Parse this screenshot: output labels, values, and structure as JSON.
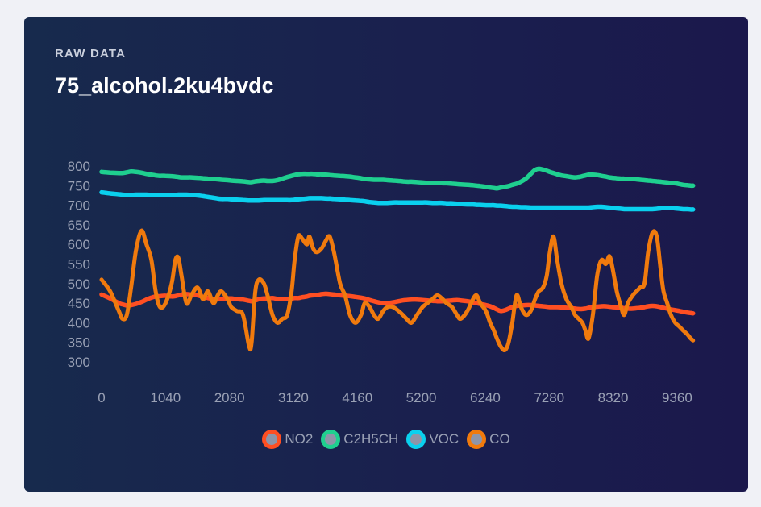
{
  "card": {
    "eyebrow": "RAW DATA",
    "title": "75_alcohol.2ku4bvdc"
  },
  "chart_data": {
    "type": "line",
    "title": "75_alcohol.2ku4bvdc",
    "xlabel": "",
    "ylabel": "",
    "xlim": [
      0,
      9650
    ],
    "ylim": [
      280,
      820
    ],
    "x_ticks": [
      0,
      1040,
      2080,
      3120,
      4160,
      5200,
      6240,
      7280,
      8320,
      9360
    ],
    "y_ticks": [
      300,
      350,
      400,
      450,
      500,
      550,
      600,
      650,
      700,
      750,
      800
    ],
    "grid": false,
    "legend_position": "bottom",
    "x": [
      0,
      140,
      280,
      340,
      410,
      480,
      560,
      650,
      730,
      810,
      880,
      950,
      1040,
      1140,
      1200,
      1250,
      1300,
      1380,
      1460,
      1560,
      1650,
      1730,
      1820,
      1890,
      1950,
      2050,
      2110,
      2200,
      2300,
      2400,
      2440,
      2500,
      2560,
      2640,
      2700,
      2780,
      2860,
      2940,
      3020,
      3090,
      3140,
      3200,
      3260,
      3340,
      3380,
      3440,
      3500,
      3580,
      3650,
      3710,
      3780,
      3880,
      3960,
      4040,
      4130,
      4220,
      4280,
      4360,
      4430,
      4500,
      4580,
      4650,
      4740,
      4830,
      4900,
      4960,
      5040,
      5130,
      5220,
      5300,
      5380,
      5460,
      5550,
      5610,
      5700,
      5780,
      5840,
      5950,
      6040,
      6100,
      6160,
      6250,
      6320,
      6380,
      6430,
      6490,
      6560,
      6620,
      6680,
      6750,
      6820,
      6900,
      6980,
      7050,
      7110,
      7180,
      7240,
      7290,
      7350,
      7410,
      7480,
      7560,
      7640,
      7700,
      7760,
      7820,
      7870,
      7920,
      7990,
      8060,
      8130,
      8200,
      8260,
      8310,
      8380,
      8450,
      8500,
      8560,
      8640,
      8700,
      8760,
      8830,
      8890,
      8960,
      9030,
      9090,
      9140,
      9200,
      9260,
      9330,
      9400,
      9460,
      9530,
      9580,
      9620
    ],
    "series": [
      {
        "name": "NO2",
        "color": "#ff4f22",
        "values": [
          472,
          462,
          450,
          447,
          444,
          445,
          448,
          453,
          459,
          464,
          467,
          468,
          469,
          467,
          468,
          470,
          472,
          473,
          472,
          470,
          466,
          463,
          460,
          460,
          461,
          462,
          462,
          460,
          459,
          456,
          455,
          457,
          460,
          462,
          462,
          463,
          461,
          460,
          461,
          462,
          463,
          463,
          465,
          467,
          469,
          470,
          471,
          473,
          474,
          473,
          472,
          470,
          469,
          468,
          466,
          464,
          462,
          458,
          455,
          452,
          450,
          450,
          452,
          455,
          457,
          458,
          459,
          459,
          458,
          457,
          456,
          455,
          455,
          456,
          457,
          458,
          457,
          455,
          452,
          450,
          448,
          445,
          442,
          438,
          434,
          430,
          432,
          436,
          440,
          443,
          444,
          445,
          445,
          444,
          443,
          442,
          441,
          440,
          440,
          440,
          439,
          438,
          437,
          436,
          435,
          435,
          436,
          438,
          440,
          441,
          442,
          442,
          441,
          440,
          439,
          438,
          437,
          436,
          436,
          437,
          438,
          440,
          442,
          443,
          442,
          440,
          438,
          436,
          434,
          432,
          430,
          428,
          426,
          425,
          424
        ]
      },
      {
        "name": "C2H5CH",
        "color": "#1fcf8f",
        "values": [
          785,
          783,
          782,
          782,
          784,
          786,
          785,
          783,
          780,
          778,
          776,
          775,
          775,
          774,
          773,
          772,
          771,
          771,
          771,
          770,
          769,
          768,
          767,
          766,
          765,
          764,
          763,
          762,
          761,
          759,
          759,
          761,
          762,
          763,
          762,
          762,
          764,
          768,
          772,
          775,
          777,
          779,
          780,
          780,
          780,
          780,
          779,
          779,
          778,
          777,
          776,
          775,
          774,
          773,
          771,
          769,
          767,
          766,
          765,
          765,
          765,
          764,
          763,
          762,
          761,
          760,
          760,
          759,
          758,
          757,
          757,
          757,
          756,
          756,
          755,
          754,
          753,
          752,
          751,
          750,
          749,
          747,
          745,
          744,
          743,
          745,
          747,
          749,
          752,
          755,
          760,
          768,
          780,
          790,
          793,
          791,
          788,
          785,
          782,
          779,
          776,
          774,
          772,
          771,
          772,
          774,
          776,
          778,
          778,
          777,
          775,
          773,
          771,
          770,
          769,
          768,
          768,
          767,
          767,
          766,
          765,
          764,
          763,
          762,
          761,
          760,
          759,
          758,
          757,
          756,
          754,
          752,
          751,
          750,
          750
        ]
      },
      {
        "name": "VOC",
        "color": "#0ad0ee",
        "values": [
          733,
          730,
          728,
          727,
          726,
          726,
          727,
          727,
          727,
          726,
          726,
          726,
          726,
          726,
          726,
          727,
          727,
          727,
          726,
          725,
          723,
          721,
          719,
          717,
          716,
          716,
          715,
          714,
          713,
          712,
          712,
          712,
          712,
          713,
          713,
          713,
          713,
          713,
          713,
          713,
          714,
          715,
          716,
          717,
          718,
          718,
          718,
          718,
          717,
          717,
          716,
          715,
          714,
          713,
          712,
          711,
          710,
          708,
          707,
          706,
          706,
          706,
          707,
          707,
          707,
          707,
          707,
          707,
          707,
          707,
          706,
          706,
          706,
          705,
          705,
          704,
          703,
          702,
          702,
          701,
          701,
          700,
          700,
          700,
          699,
          699,
          698,
          697,
          696,
          696,
          695,
          695,
          694,
          694,
          694,
          694,
          694,
          694,
          694,
          694,
          694,
          694,
          694,
          694,
          694,
          694,
          694,
          694,
          695,
          696,
          696,
          695,
          694,
          693,
          692,
          691,
          690,
          690,
          690,
          690,
          690,
          690,
          690,
          690,
          691,
          692,
          693,
          693,
          693,
          692,
          691,
          690,
          690,
          689,
          689
        ]
      },
      {
        "name": "CO",
        "color": "#f07a0d",
        "values": [
          510,
          480,
          430,
          410,
          420,
          490,
          585,
          635,
          600,
          560,
          480,
          440,
          450,
          500,
          560,
          565,
          520,
          450,
          470,
          490,
          460,
          480,
          450,
          470,
          480,
          460,
          440,
          430,
          420,
          340,
          350,
          480,
          510,
          500,
          470,
          420,
          400,
          410,
          420,
          480,
          560,
          620,
          615,
          600,
          620,
          590,
          580,
          590,
          610,
          620,
          580,
          500,
          470,
          420,
          400,
          420,
          450,
          440,
          420,
          410,
          430,
          440,
          440,
          430,
          420,
          410,
          400,
          420,
          440,
          450,
          460,
          470,
          460,
          450,
          440,
          420,
          410,
          430,
          460,
          470,
          450,
          430,
          400,
          380,
          360,
          340,
          330,
          350,
          400,
          470,
          440,
          420,
          430,
          460,
          480,
          490,
          520,
          580,
          620,
          560,
          500,
          460,
          440,
          420,
          410,
          400,
          380,
          360,
          420,
          520,
          560,
          550,
          570,
          540,
          480,
          440,
          420,
          450,
          470,
          480,
          490,
          500,
          580,
          630,
          620,
          540,
          480,
          450,
          420,
          400,
          390,
          380,
          370,
          360,
          355
        ]
      }
    ]
  }
}
